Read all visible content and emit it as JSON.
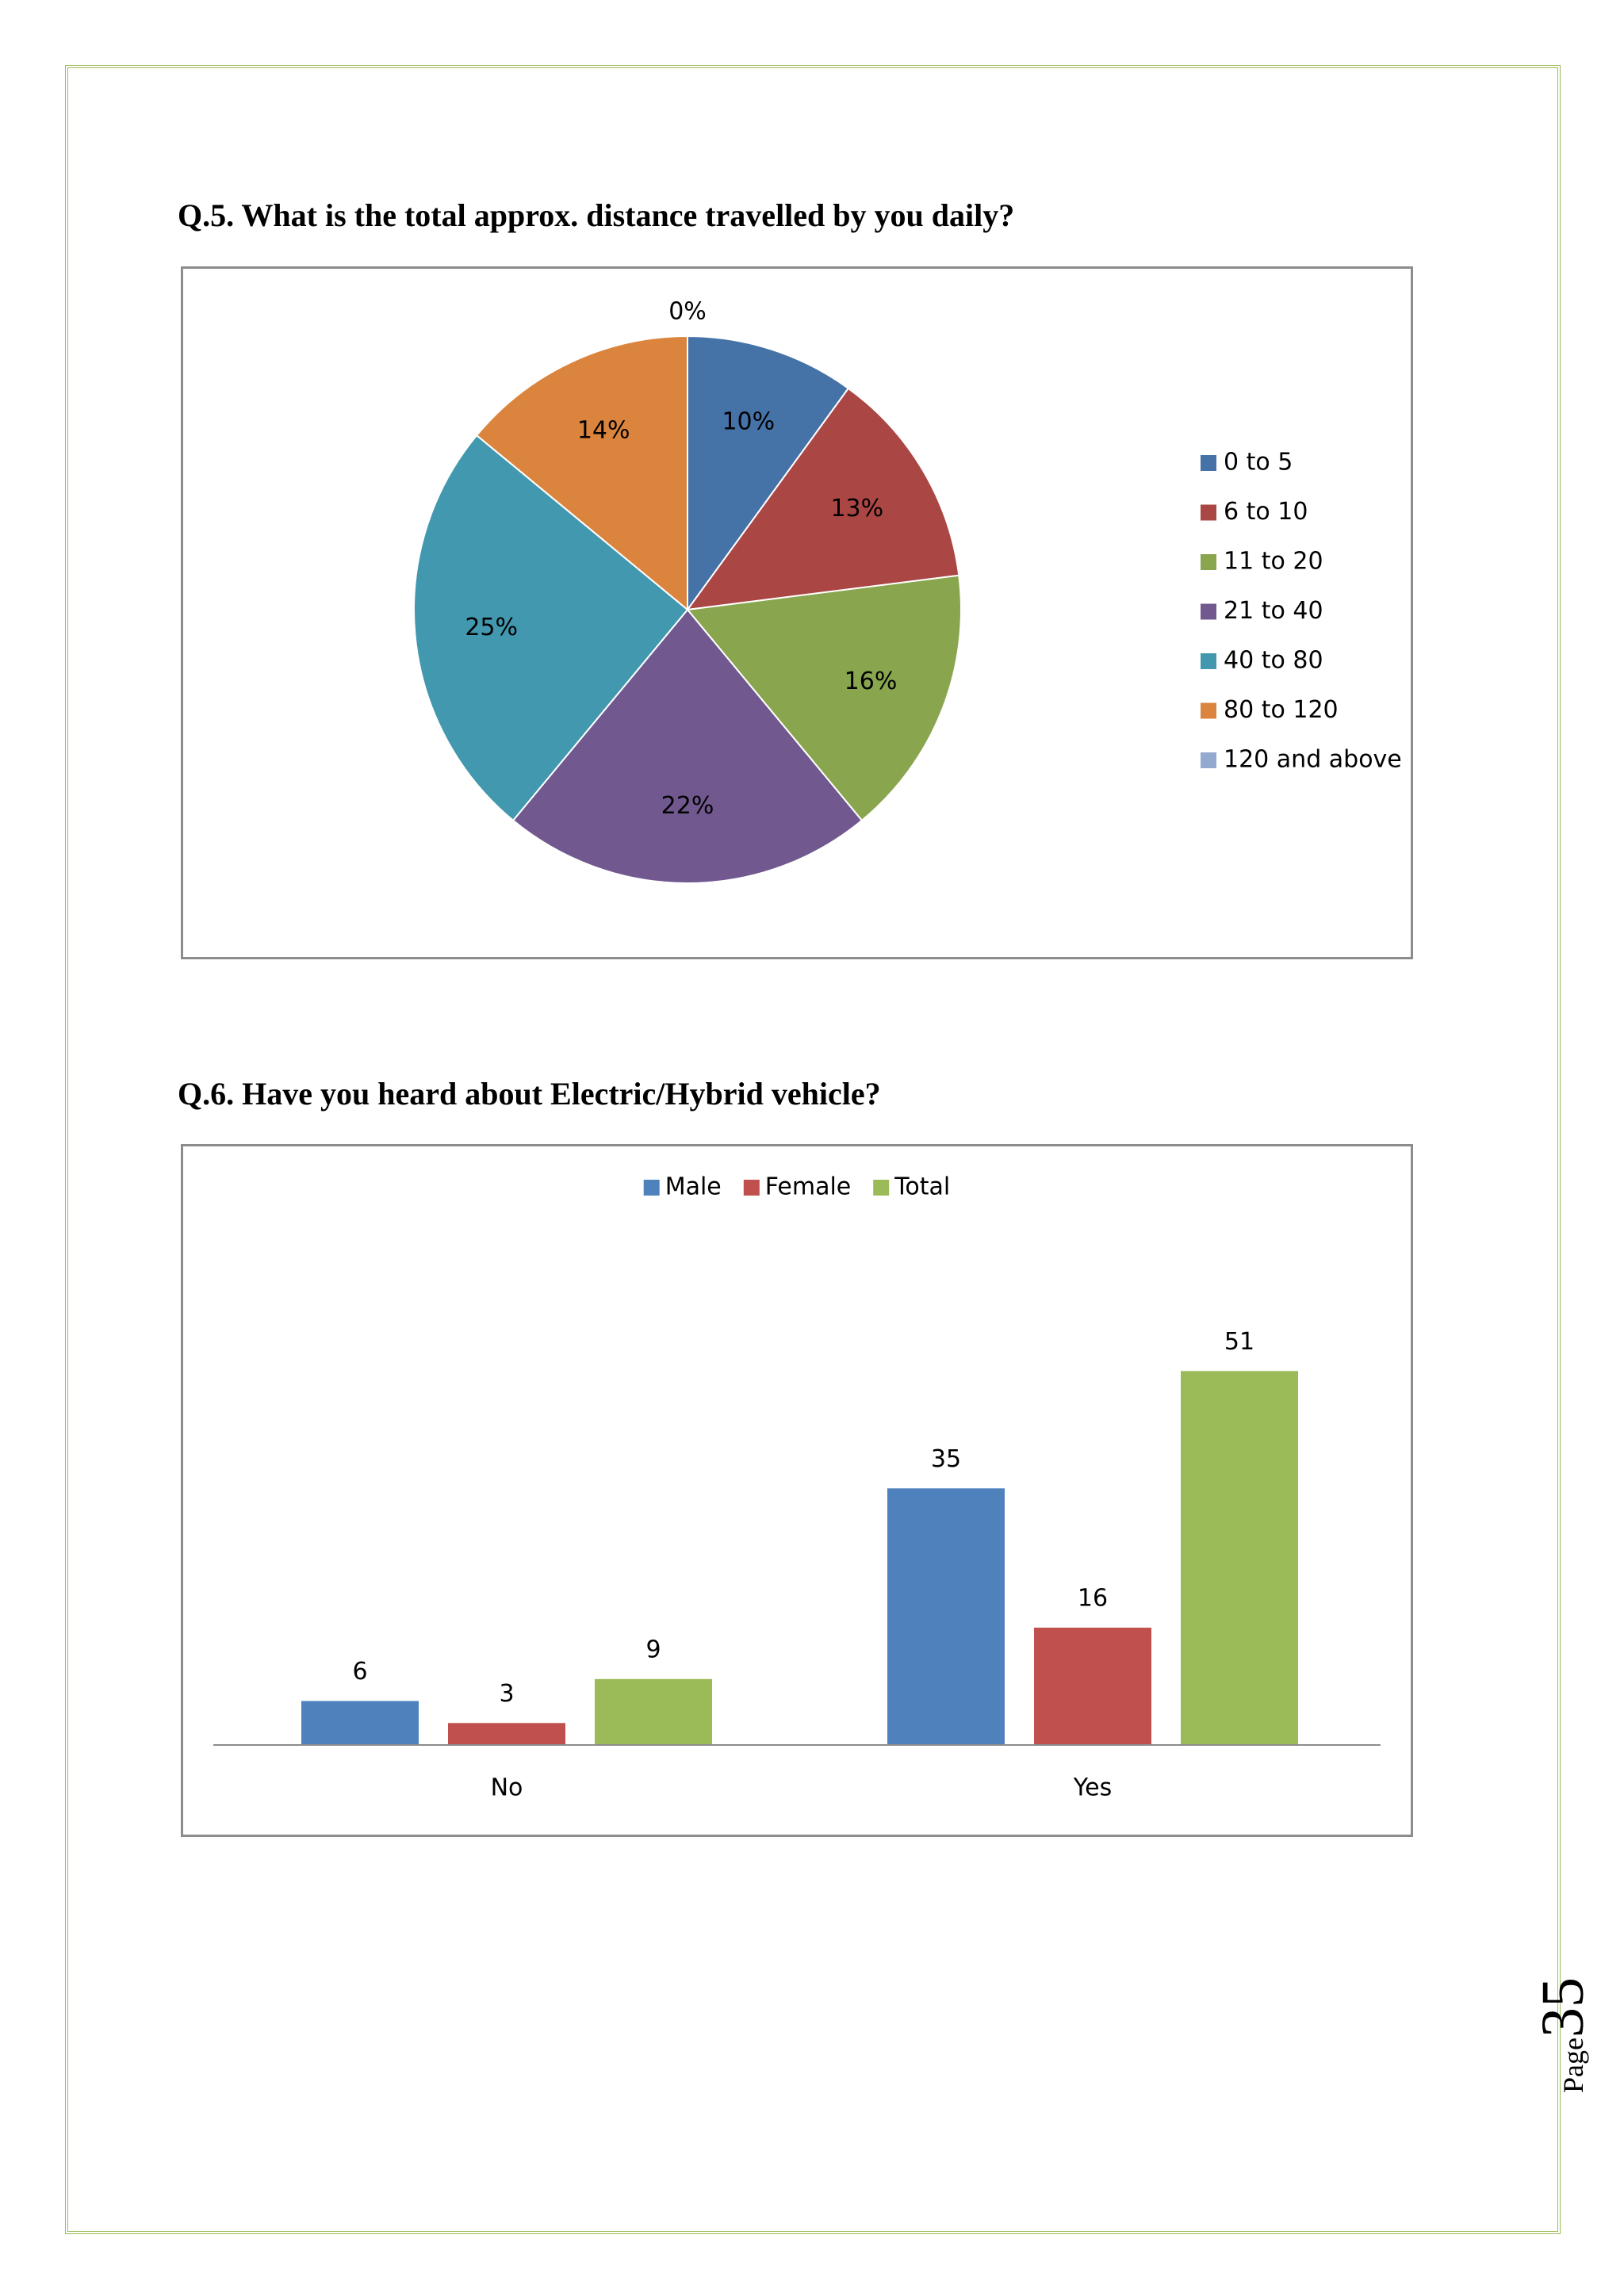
{
  "q5": {
    "question": "Q.5. What is the total approx. distance travelled by you daily?"
  },
  "q6": {
    "question": "Q.6. Have you heard about Electric/Hybrid vehicle?"
  },
  "page": {
    "label": "Page",
    "number": "35"
  },
  "colors": {
    "border": "#9bbb59",
    "frame": "#8c8c8c"
  },
  "chart_data": [
    {
      "type": "pie",
      "title": "",
      "labels": [
        "0 to 5",
        "6 to 10",
        "11 to 20",
        "21 to 40",
        "40 to 80",
        "80 to 120",
        "120 and above"
      ],
      "values": [
        10,
        13,
        16,
        22,
        25,
        14,
        0
      ],
      "value_labels": [
        "10%",
        "13%",
        "16%",
        "22%",
        "25%",
        "14%",
        "0%"
      ],
      "colors": [
        "#4572a7",
        "#aa4643",
        "#89a54e",
        "#71588f",
        "#4198af",
        "#db843d",
        "#93a9cf"
      ],
      "legend_position": "right"
    },
    {
      "type": "bar",
      "title": "",
      "categories": [
        "No",
        "Yes"
      ],
      "series": [
        {
          "name": "Male",
          "values": [
            6,
            35
          ],
          "color": "#4f81bd"
        },
        {
          "name": "Female",
          "values": [
            3,
            16
          ],
          "color": "#c0504d"
        },
        {
          "name": "Total",
          "values": [
            9,
            51
          ],
          "color": "#9bbb59"
        }
      ],
      "xlabel": "",
      "ylabel": "",
      "ylim": [
        0,
        60
      ],
      "grid": false,
      "legend_position": "top"
    }
  ]
}
